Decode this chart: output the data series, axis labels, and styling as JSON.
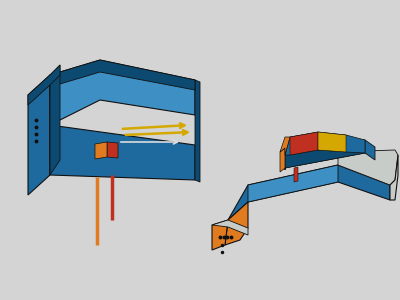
{
  "background_color": "#d4d4d4",
  "w1": {
    "blue_light": "#3d8fc4",
    "blue_mid": "#1e6a9e",
    "blue_dark": "#0d4a72",
    "orange": "#e07b20",
    "red": "#c03020",
    "yellow": "#d4a800",
    "gray": "#aaaaaa"
  },
  "w2": {
    "blue_light": "#3d8fc4",
    "blue_mid": "#1e6a9e",
    "blue_dark": "#0d4a72",
    "orange": "#e07b20",
    "red": "#c03020",
    "yellow": "#d4a800",
    "gray_light": "#c8ccc8",
    "gray_dark": "#909090"
  }
}
